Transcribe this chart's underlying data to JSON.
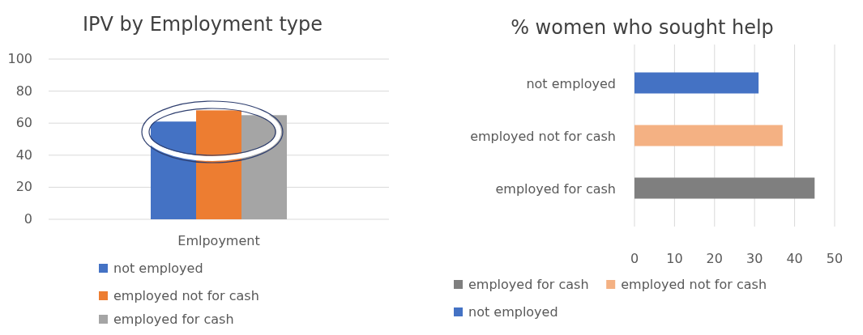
{
  "chart_data": [
    {
      "type": "bar",
      "title": "IPV by Employment type",
      "categories": [
        "Emlpoyment"
      ],
      "series": [
        {
          "name": "not employed",
          "color": "#4472c4",
          "values": [
            61
          ]
        },
        {
          "name": "employed not for cash",
          "color": "#ed7d31",
          "values": [
            68
          ]
        },
        {
          "name": "employed for cash",
          "color": "#a5a5a5",
          "values": [
            65
          ]
        }
      ],
      "ylim": [
        0,
        100
      ],
      "yticks": [
        0,
        20,
        40,
        60,
        80,
        100
      ],
      "grid": "y",
      "legend": "bottom left"
    },
    {
      "type": "bar",
      "title": "% women who sought help",
      "orientation": "horizontal",
      "stacked": true,
      "categories": [
        "not employed",
        "employed not for cash",
        "employed for cash"
      ],
      "series": [
        {
          "name": "employed for cash",
          "color": "#7f7f7f",
          "values": [
            null,
            null,
            45
          ]
        },
        {
          "name": "employed not for cash",
          "color": "#f4b183",
          "values": [
            null,
            37,
            null
          ]
        },
        {
          "name": "not employed",
          "color": "#4472c4",
          "values": [
            31,
            null,
            null
          ]
        }
      ],
      "xlim": [
        0,
        50
      ],
      "xticks": [
        0,
        10,
        20,
        30,
        40,
        50
      ],
      "grid": "x",
      "legend": "bottom"
    }
  ]
}
